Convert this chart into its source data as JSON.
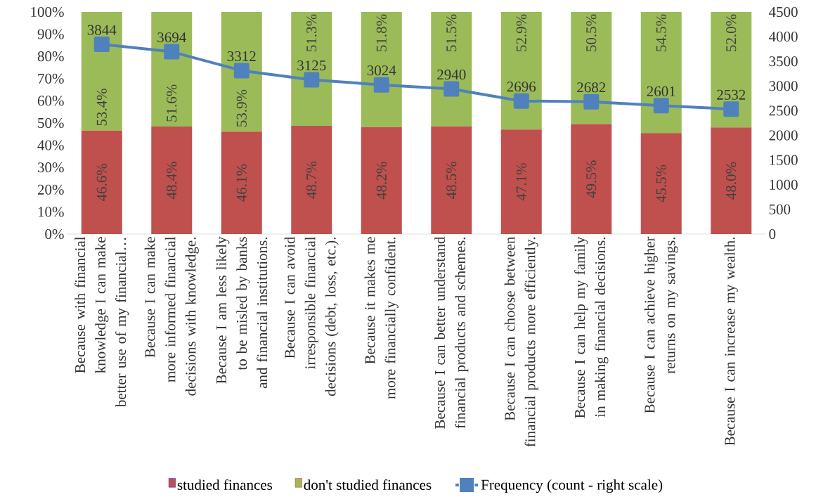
{
  "chart_data": {
    "type": "bar",
    "stacked": true,
    "legend": "bottom",
    "marker": "square",
    "categories": [
      "Because with financial knowledge I can make better use of my financial…",
      "Because I can make more informed financial decisions with knowledge.",
      "Because I am less likely to be misled by banks and financial institutions.",
      "Because I can avoid irresponsible financial decisions (debt, loss, etc.).",
      "Because it makes me more financially confident.",
      "Because I can better understand financial products and schemes.",
      "Because I can choose between financial products more efficiently.",
      "Because I can help my family in making financial decisions.",
      "Because I can achieve higher returns on my savings.",
      "Because I can increase my wealth."
    ],
    "series": [
      {
        "name": "studied finances",
        "type": "bar",
        "color": "#c0504d",
        "values": [
          46.6,
          48.4,
          46.1,
          48.7,
          48.2,
          48.5,
          47.1,
          49.5,
          45.5,
          48.0
        ],
        "value_labels": [
          "46.6%",
          "48.4%",
          "46.1%",
          "48.7%",
          "48.2%",
          "48.5%",
          "47.1%",
          "49.5%",
          "45.5%",
          "48.0%"
        ]
      },
      {
        "name": "don't studied finances",
        "type": "bar",
        "color": "#9bbb59",
        "values": [
          53.4,
          51.6,
          53.9,
          51.3,
          51.8,
          51.5,
          52.9,
          50.5,
          54.5,
          52.0
        ],
        "value_labels": [
          "53.4%",
          "51.6%",
          "53.9%",
          "51.3%",
          "51.8%",
          "51.5%",
          "52.9%",
          "50.5%",
          "54.5%",
          "52.0%"
        ]
      },
      {
        "name": "Frequency (count - right scale)",
        "type": "line",
        "axis": "y2",
        "color": "#4f81bd",
        "values": [
          3844,
          3694,
          3312,
          3125,
          3024,
          2940,
          2696,
          2682,
          2601,
          2532
        ],
        "value_labels": [
          "3844",
          "3694",
          "3312",
          "3125",
          "3024",
          "2940",
          "2696",
          "2682",
          "2601",
          "2532"
        ]
      }
    ],
    "ylim": [
      0,
      100
    ],
    "yticks": [
      {
        "value": 0,
        "label": "0%"
      },
      {
        "value": 10,
        "label": "10%"
      },
      {
        "value": 20,
        "label": "20%"
      },
      {
        "value": 30,
        "label": "30%"
      },
      {
        "value": 40,
        "label": "40%"
      },
      {
        "value": 50,
        "label": "50%"
      },
      {
        "value": 60,
        "label": "60%"
      },
      {
        "value": 70,
        "label": "70%"
      },
      {
        "value": 80,
        "label": "80%"
      },
      {
        "value": 90,
        "label": "90%"
      },
      {
        "value": 100,
        "label": "100%"
      }
    ],
    "y2lim": [
      0,
      4500
    ],
    "y2ticks": [
      0,
      500,
      1000,
      1500,
      2000,
      2500,
      3000,
      3500,
      4000,
      4500
    ]
  }
}
